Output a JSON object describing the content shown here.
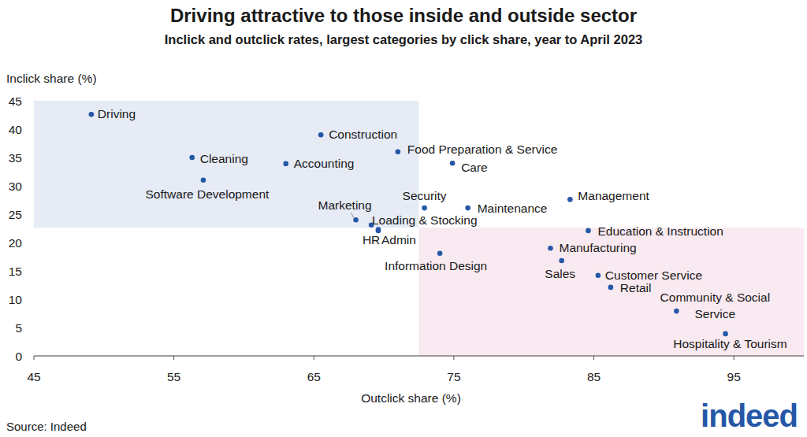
{
  "chart_data": {
    "type": "scatter",
    "title": "Driving attractive to those inside and outside sector",
    "subtitle": "Inclick and outclick rates, largest categories by click share, year to April 2023",
    "x_label": "Outclick share (%)",
    "y_label": "Inclick share (%)",
    "source": "Source: Indeed",
    "logo": "indeed",
    "categories": [
      "Driving",
      "Construction",
      "Food Preparation & Service",
      "Cleaning",
      "Accounting",
      "Care",
      "Software Development",
      "Management",
      "Security",
      "Maintenance",
      "Marketing",
      "HR",
      "Loading & Stocking",
      "Admin",
      "Education & Instruction",
      "Manufacturing",
      "Information Design",
      "Sales",
      "Customer Service",
      "Retail",
      "Community & Social Service",
      "Hospitality & Tourism"
    ],
    "x": [
      49.1,
      65.5,
      71.0,
      56.3,
      63.0,
      74.9,
      57.1,
      83.3,
      72.9,
      76.0,
      68.0,
      69.1,
      69.6,
      69.6,
      84.6,
      81.9,
      74.0,
      82.7,
      85.3,
      86.2,
      90.9,
      94.4
    ],
    "values": [
      42.6,
      39.0,
      36.0,
      35.0,
      33.9,
      34.0,
      31.0,
      27.6,
      26.1,
      26.1,
      24.0,
      23.1,
      22.3,
      22.1,
      22.1,
      19.0,
      18.1,
      16.8,
      14.2,
      12.1,
      7.9,
      3.9
    ],
    "color": "#2557a7",
    "reference": {
      "x": 72.5,
      "y": 22.6
    },
    "xlim": [
      45,
      100
    ],
    "xticks": [
      45,
      55,
      65,
      75,
      85,
      95
    ],
    "ylim": [
      0,
      45
    ],
    "yticks": [
      0,
      5,
      10,
      15,
      20,
      25,
      30,
      35,
      40,
      45
    ],
    "grid": false
  }
}
